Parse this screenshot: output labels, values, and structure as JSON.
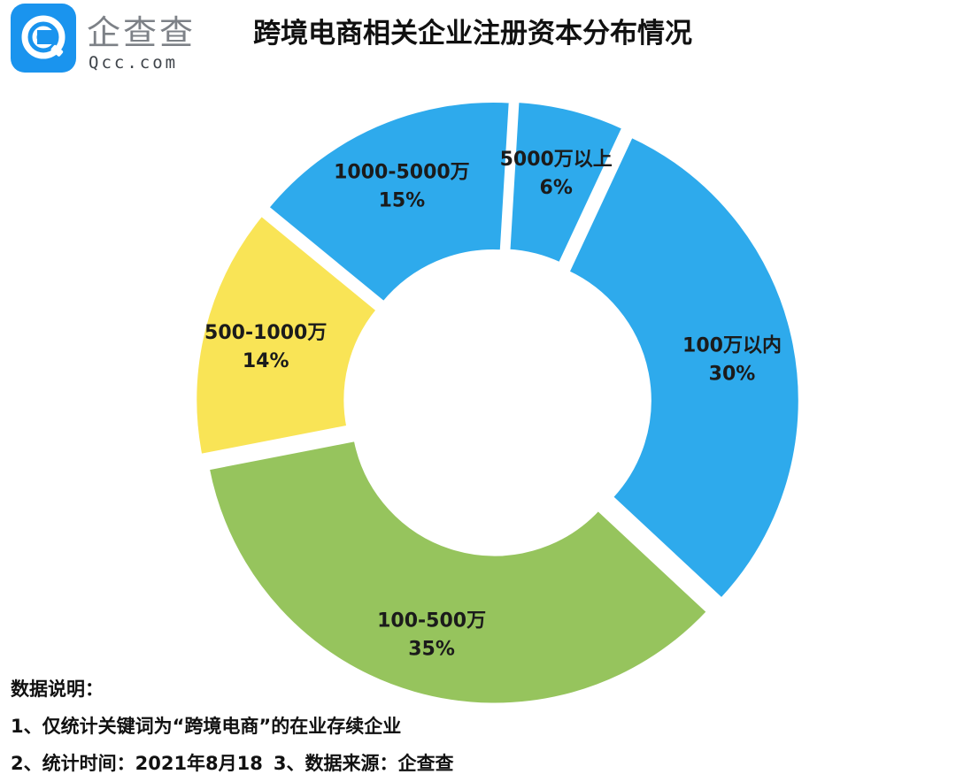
{
  "logo": {
    "name": "企查查",
    "domain": "Qcc.com"
  },
  "title": "跨境电商相关企业注册资本分布情况",
  "colors": {
    "blue": "#2eaaec",
    "green": "#96c45d",
    "yellow": "#f9e456"
  },
  "chart_data": {
    "type": "pie",
    "title": "跨境电商相关企业注册资本分布情况",
    "style": "donut, exploded slices",
    "slices": [
      {
        "label": "100万以内",
        "value": 30,
        "value_text": "30%",
        "color": "#2eaaec"
      },
      {
        "label": "100-500万",
        "value": 35,
        "value_text": "35%",
        "color": "#96c45d"
      },
      {
        "label": "500-1000万",
        "value": 14,
        "value_text": "14%",
        "color": "#f9e456"
      },
      {
        "label": "1000-5000万",
        "value": 15,
        "value_text": "15%",
        "color": "#2eaaec"
      },
      {
        "label": "5000万以上",
        "value": 6,
        "value_text": "6%",
        "color": "#2eaaec"
      }
    ]
  },
  "notes": {
    "heading": "数据说明：",
    "line1": "1、仅统计关键词为“跨境电商”的在业存续企业",
    "line2a": "2、统计时间：2021年8月18",
    "line2b": "3、数据来源：企查查"
  }
}
